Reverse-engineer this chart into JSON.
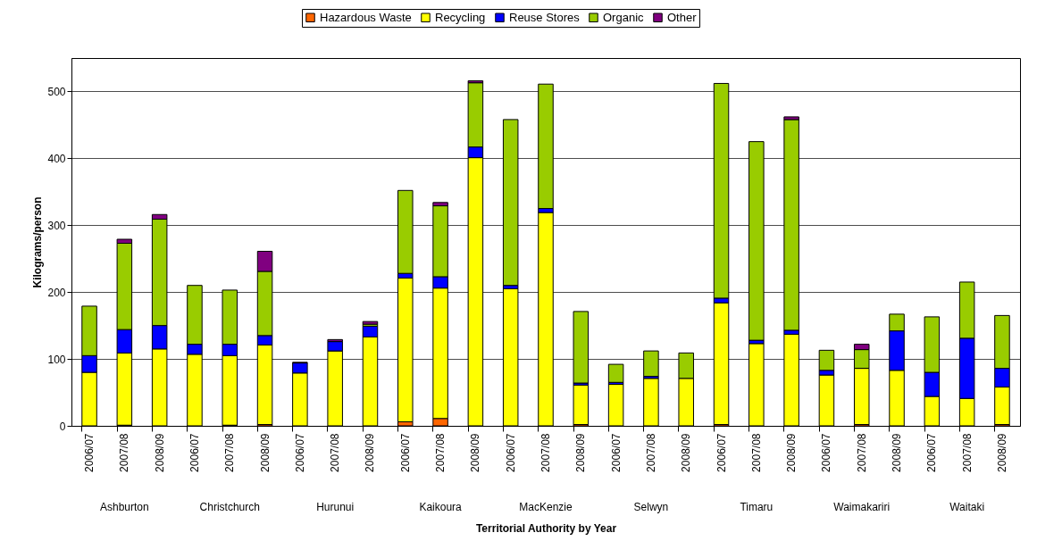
{
  "chart_data": {
    "type": "bar",
    "stacked": true,
    "xlabel": "Territorial Authority by Year",
    "ylabel": "Kilograms/person",
    "categories": [
      "2006/07",
      "2007/08",
      "2008/09",
      "2006/07",
      "2007/08",
      "2008/09",
      "2006/07",
      "2007/08",
      "2008/09",
      "2006/07",
      "2007/08",
      "2008/09",
      "2006/07",
      "2007/08",
      "2008/09",
      "2006/07",
      "2007/08",
      "2008/09",
      "2006/07",
      "2007/08",
      "2008/09",
      "2006/07",
      "2007/08",
      "2008/09",
      "2006/07",
      "2007/08",
      "2008/09"
    ],
    "annotations": [
      "Ashburton",
      "Christchurch",
      "Hurunui",
      "Kaikoura",
      "MacKenzie",
      "Selwyn",
      "Timaru",
      "Waimakariri",
      "Waitaki"
    ],
    "series": [
      {
        "name": "Hazardous Waste",
        "color": "#ff6600",
        "values": [
          0,
          1,
          0,
          0,
          1,
          2,
          0,
          0,
          0,
          6,
          11,
          0,
          0,
          0,
          2,
          0,
          0,
          0,
          2,
          0,
          0,
          0,
          2,
          0,
          0,
          0,
          2
        ]
      },
      {
        "name": "Recycling",
        "color": "#ffff00",
        "values": [
          80,
          108,
          115,
          107,
          104,
          119,
          79,
          112,
          133,
          215,
          195,
          401,
          205,
          319,
          59,
          62,
          71,
          71,
          182,
          123,
          137,
          76,
          84,
          83,
          44,
          41,
          56
        ]
      },
      {
        "name": "Reuse Stores",
        "color": "#0000ff",
        "values": [
          25,
          35,
          35,
          15,
          17,
          14,
          15,
          14,
          16,
          7,
          17,
          16,
          5,
          6,
          3,
          3,
          3,
          null,
          7,
          5,
          6,
          7,
          0,
          59,
          36,
          90,
          28
        ]
      },
      {
        "name": "Organic",
        "color": "#99cc00",
        "values": [
          74,
          129,
          159,
          88,
          81,
          96,
          0,
          0,
          3,
          124,
          106,
          96,
          248,
          186,
          107,
          27,
          38,
          38,
          321,
          297,
          315,
          30,
          28,
          25,
          83,
          84,
          79
        ]
      },
      {
        "name": "Other",
        "color": "#800080",
        "values": [
          0,
          6,
          7,
          0,
          0,
          30,
          1,
          3,
          4,
          0,
          5,
          3,
          0,
          0,
          0,
          0,
          0,
          0,
          0,
          0,
          4,
          0,
          8,
          0,
          0,
          0,
          0
        ]
      }
    ],
    "ylim": [
      0,
      550
    ],
    "yticks": [
      0,
      100,
      200,
      300,
      400,
      500
    ],
    "grid": "y",
    "legend": "top"
  }
}
